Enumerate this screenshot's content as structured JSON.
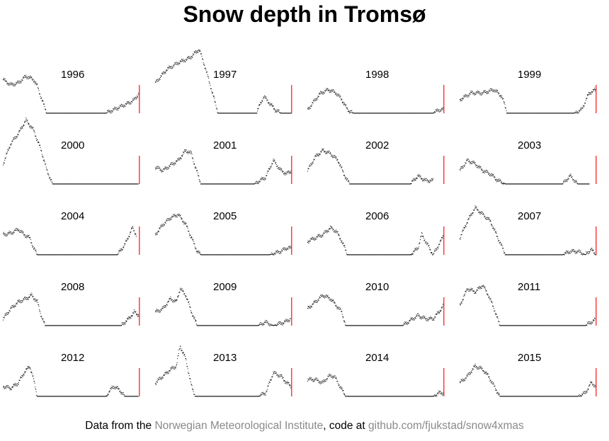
{
  "title": "Snow depth in Tromsø",
  "footer": {
    "prefix": "Data from the ",
    "source": "Norwegian Meteorological Institute",
    "middle": ", code at ",
    "repo": "github.com/fjukstad/snow4xmas"
  },
  "colors": {
    "points": "#000000",
    "marker": "#ff3030",
    "link": "#8a8a8a"
  },
  "chart_data": {
    "type": "scatter",
    "facets": "small-multiples",
    "x": "day of year (Jan 1 – Dec 31)",
    "y": "snow depth (relative, 0–1)",
    "marker_day": 359,
    "ylim": [
      0,
      1
    ],
    "panels": [
      {
        "year": "1996",
        "points": [
          [
            0,
            0.5
          ],
          [
            20,
            0.42
          ],
          [
            40,
            0.45
          ],
          [
            60,
            0.55
          ],
          [
            80,
            0.5
          ],
          [
            90,
            0.4
          ],
          [
            105,
            0.15
          ],
          [
            115,
            0.0
          ],
          [
            130,
            0.0
          ],
          [
            200,
            0.0
          ],
          [
            270,
            0.0
          ],
          [
            290,
            0.05
          ],
          [
            310,
            0.1
          ],
          [
            330,
            0.15
          ],
          [
            345,
            0.2
          ],
          [
            358,
            0.3
          ]
        ]
      },
      {
        "year": "1997",
        "points": [
          [
            0,
            0.45
          ],
          [
            30,
            0.65
          ],
          [
            60,
            0.75
          ],
          [
            90,
            0.82
          ],
          [
            115,
            0.95
          ],
          [
            130,
            0.7
          ],
          [
            150,
            0.3
          ],
          [
            165,
            0.0
          ],
          [
            220,
            0.0
          ],
          [
            265,
            0.0
          ],
          [
            285,
            0.25
          ],
          [
            300,
            0.15
          ],
          [
            315,
            0.05
          ],
          [
            330,
            0.0
          ],
          [
            358,
            0.0
          ]
        ]
      },
      {
        "year": "1998",
        "points": [
          [
            0,
            0.05
          ],
          [
            20,
            0.2
          ],
          [
            35,
            0.3
          ],
          [
            55,
            0.35
          ],
          [
            75,
            0.3
          ],
          [
            90,
            0.2
          ],
          [
            105,
            0.05
          ],
          [
            120,
            0.0
          ],
          [
            200,
            0.0
          ],
          [
            270,
            0.0
          ],
          [
            300,
            0.0
          ],
          [
            330,
            0.0
          ],
          [
            345,
            0.05
          ],
          [
            358,
            0.05
          ]
        ]
      },
      {
        "year": "1999",
        "points": [
          [
            0,
            0.2
          ],
          [
            30,
            0.3
          ],
          [
            60,
            0.3
          ],
          [
            90,
            0.35
          ],
          [
            110,
            0.25
          ],
          [
            125,
            0.0
          ],
          [
            170,
            0.0
          ],
          [
            270,
            0.0
          ],
          [
            300,
            0.0
          ],
          [
            320,
            0.05
          ],
          [
            340,
            0.3
          ],
          [
            358,
            0.35
          ]
        ]
      },
      {
        "year": "2000",
        "points": [
          [
            0,
            0.3
          ],
          [
            20,
            0.6
          ],
          [
            40,
            0.75
          ],
          [
            60,
            0.95
          ],
          [
            80,
            0.8
          ],
          [
            100,
            0.5
          ],
          [
            115,
            0.2
          ],
          [
            130,
            0.0
          ],
          [
            200,
            0.0
          ],
          [
            270,
            0.0
          ],
          [
            290,
            0.0
          ],
          [
            330,
            0.0
          ],
          [
            355,
            0.0
          ]
        ]
      },
      {
        "year": "2001",
        "points": [
          [
            0,
            0.25
          ],
          [
            20,
            0.2
          ],
          [
            40,
            0.28
          ],
          [
            60,
            0.35
          ],
          [
            80,
            0.5
          ],
          [
            95,
            0.45
          ],
          [
            105,
            0.25
          ],
          [
            120,
            0.0
          ],
          [
            200,
            0.0
          ],
          [
            260,
            0.0
          ],
          [
            290,
            0.1
          ],
          [
            310,
            0.35
          ],
          [
            330,
            0.2
          ],
          [
            345,
            0.15
          ],
          [
            358,
            0.2
          ]
        ]
      },
      {
        "year": "2002",
        "points": [
          [
            0,
            0.2
          ],
          [
            20,
            0.4
          ],
          [
            40,
            0.5
          ],
          [
            60,
            0.45
          ],
          [
            80,
            0.35
          ],
          [
            95,
            0.15
          ],
          [
            110,
            0.0
          ],
          [
            200,
            0.0
          ],
          [
            270,
            0.0
          ],
          [
            290,
            0.12
          ],
          [
            310,
            0.05
          ],
          [
            330,
            0.05
          ]
        ]
      },
      {
        "year": "2003",
        "points": [
          [
            0,
            0.2
          ],
          [
            20,
            0.35
          ],
          [
            40,
            0.3
          ],
          [
            60,
            0.2
          ],
          [
            80,
            0.15
          ],
          [
            100,
            0.05
          ],
          [
            120,
            0.0
          ],
          [
            200,
            0.0
          ],
          [
            270,
            0.0
          ],
          [
            290,
            0.12
          ],
          [
            310,
            0.0
          ],
          [
            340,
            0.0
          ]
        ]
      },
      {
        "year": "2004",
        "points": [
          [
            0,
            0.3
          ],
          [
            20,
            0.32
          ],
          [
            40,
            0.38
          ],
          [
            55,
            0.3
          ],
          [
            70,
            0.25
          ],
          [
            80,
            0.1
          ],
          [
            90,
            0.0
          ],
          [
            200,
            0.0
          ],
          [
            270,
            0.0
          ],
          [
            300,
            0.0
          ],
          [
            320,
            0.15
          ],
          [
            340,
            0.4
          ],
          [
            350,
            0.3
          ]
        ]
      },
      {
        "year": "2005",
        "points": [
          [
            0,
            0.3
          ],
          [
            20,
            0.45
          ],
          [
            40,
            0.55
          ],
          [
            60,
            0.6
          ],
          [
            80,
            0.45
          ],
          [
            95,
            0.25
          ],
          [
            110,
            0.05
          ],
          [
            120,
            0.0
          ],
          [
            200,
            0.0
          ],
          [
            270,
            0.0
          ],
          [
            300,
            0.0
          ],
          [
            330,
            0.05
          ],
          [
            345,
            0.1
          ],
          [
            358,
            0.1
          ]
        ]
      },
      {
        "year": "2006",
        "points": [
          [
            0,
            0.2
          ],
          [
            20,
            0.25
          ],
          [
            40,
            0.3
          ],
          [
            60,
            0.4
          ],
          [
            75,
            0.35
          ],
          [
            90,
            0.2
          ],
          [
            105,
            0.0
          ],
          [
            200,
            0.0
          ],
          [
            270,
            0.0
          ],
          [
            290,
            0.1
          ],
          [
            300,
            0.3
          ],
          [
            315,
            0.15
          ],
          [
            330,
            0.0
          ],
          [
            350,
            0.2
          ],
          [
            358,
            0.3
          ]
        ]
      },
      {
        "year": "2007",
        "points": [
          [
            0,
            0.25
          ],
          [
            20,
            0.5
          ],
          [
            40,
            0.7
          ],
          [
            60,
            0.6
          ],
          [
            80,
            0.5
          ],
          [
            100,
            0.25
          ],
          [
            120,
            0.0
          ],
          [
            200,
            0.0
          ],
          [
            270,
            0.0
          ],
          [
            290,
            0.05
          ],
          [
            310,
            0.05
          ],
          [
            330,
            0.0
          ],
          [
            345,
            0.08
          ],
          [
            358,
            0.0
          ]
        ]
      },
      {
        "year": "2008",
        "points": [
          [
            0,
            0.1
          ],
          [
            20,
            0.25
          ],
          [
            40,
            0.35
          ],
          [
            60,
            0.4
          ],
          [
            75,
            0.45
          ],
          [
            90,
            0.35
          ],
          [
            100,
            0.15
          ],
          [
            110,
            0.0
          ],
          [
            200,
            0.0
          ],
          [
            270,
            0.0
          ],
          [
            310,
            0.0
          ],
          [
            330,
            0.1
          ],
          [
            345,
            0.2
          ],
          [
            358,
            0.15
          ]
        ]
      },
      {
        "year": "2009",
        "points": [
          [
            0,
            0.2
          ],
          [
            20,
            0.25
          ],
          [
            40,
            0.4
          ],
          [
            55,
            0.35
          ],
          [
            65,
            0.55
          ],
          [
            80,
            0.45
          ],
          [
            95,
            0.2
          ],
          [
            110,
            0.0
          ],
          [
            200,
            0.0
          ],
          [
            270,
            0.0
          ],
          [
            290,
            0.05
          ],
          [
            310,
            0.0
          ],
          [
            340,
            0.05
          ],
          [
            355,
            0.1
          ]
        ]
      },
      {
        "year": "2010",
        "points": [
          [
            0,
            0.25
          ],
          [
            20,
            0.35
          ],
          [
            40,
            0.45
          ],
          [
            60,
            0.4
          ],
          [
            75,
            0.3
          ],
          [
            90,
            0.2
          ],
          [
            100,
            0.0
          ],
          [
            200,
            0.0
          ],
          [
            250,
            0.0
          ],
          [
            290,
            0.15
          ],
          [
            310,
            0.1
          ],
          [
            330,
            0.1
          ],
          [
            345,
            0.2
          ],
          [
            358,
            0.3
          ]
        ]
      },
      {
        "year": "2011",
        "points": [
          [
            0,
            0.3
          ],
          [
            20,
            0.55
          ],
          [
            40,
            0.5
          ],
          [
            60,
            0.6
          ],
          [
            75,
            0.45
          ],
          [
            90,
            0.25
          ],
          [
            105,
            0.0
          ],
          [
            200,
            0.0
          ],
          [
            270,
            0.0
          ],
          [
            310,
            0.0
          ],
          [
            330,
            0.0
          ],
          [
            345,
            0.05
          ],
          [
            355,
            0.08
          ]
        ]
      },
      {
        "year": "2012",
        "points": [
          [
            0,
            0.15
          ],
          [
            20,
            0.12
          ],
          [
            40,
            0.2
          ],
          [
            55,
            0.35
          ],
          [
            70,
            0.45
          ],
          [
            80,
            0.25
          ],
          [
            90,
            0.0
          ],
          [
            200,
            0.0
          ],
          [
            270,
            0.0
          ],
          [
            290,
            0.15
          ],
          [
            305,
            0.1
          ],
          [
            320,
            0.0
          ],
          [
            355,
            0.0
          ]
        ]
      },
      {
        "year": "2013",
        "points": [
          [
            0,
            0.2
          ],
          [
            20,
            0.3
          ],
          [
            40,
            0.4
          ],
          [
            55,
            0.45
          ],
          [
            65,
            0.75
          ],
          [
            80,
            0.55
          ],
          [
            95,
            0.15
          ],
          [
            105,
            0.0
          ],
          [
            200,
            0.0
          ],
          [
            270,
            0.0
          ],
          [
            290,
            0.05
          ],
          [
            310,
            0.35
          ],
          [
            330,
            0.3
          ],
          [
            345,
            0.2
          ],
          [
            358,
            0.15
          ]
        ]
      },
      {
        "year": "2014",
        "points": [
          [
            0,
            0.25
          ],
          [
            20,
            0.25
          ],
          [
            40,
            0.2
          ],
          [
            55,
            0.3
          ],
          [
            70,
            0.3
          ],
          [
            85,
            0.15
          ],
          [
            100,
            0.0
          ],
          [
            200,
            0.0
          ],
          [
            270,
            0.0
          ],
          [
            310,
            0.0
          ],
          [
            330,
            0.0
          ],
          [
            345,
            0.05
          ],
          [
            358,
            0.05
          ]
        ]
      },
      {
        "year": "2015",
        "points": [
          [
            0,
            0.2
          ],
          [
            20,
            0.3
          ],
          [
            40,
            0.45
          ],
          [
            60,
            0.4
          ],
          [
            75,
            0.3
          ],
          [
            90,
            0.15
          ],
          [
            105,
            0.0
          ],
          [
            200,
            0.0
          ],
          [
            270,
            0.0
          ],
          [
            310,
            0.0
          ],
          [
            330,
            0.05
          ],
          [
            345,
            0.2
          ],
          [
            358,
            0.15
          ]
        ]
      }
    ]
  }
}
